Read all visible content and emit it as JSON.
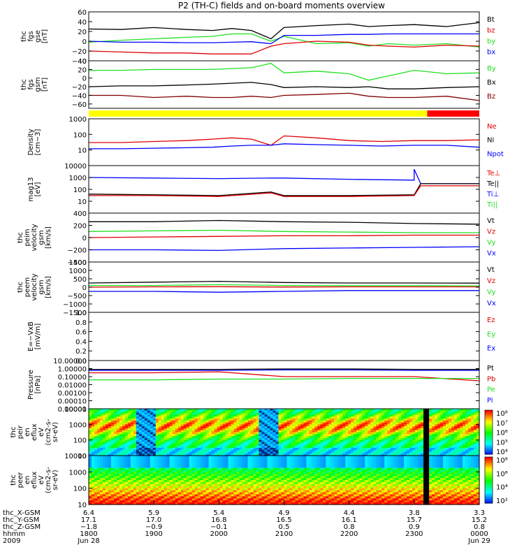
{
  "title": "P2 (TH-C) fields and on-board moments overview",
  "colors": {
    "black": "#000000",
    "red": "#e00000",
    "green": "#20e020",
    "blue": "#0000ff",
    "dark_red": "#800000",
    "yellow": "#ffff00",
    "bar_red": "#ff0000"
  },
  "chart_data": [
    {
      "id": "fgs_gse",
      "type": "line",
      "ylabel": [
        "thc",
        "fgs",
        "gse",
        "[nT]"
      ],
      "ylim": [
        -40,
        60
      ],
      "yticks": [
        "60",
        "40",
        "20",
        "0",
        "−20",
        "−40"
      ],
      "legend": [
        {
          "label": "Bt",
          "color": "#000000"
        },
        {
          "label": "bz",
          "color": "#e00000"
        },
        {
          "label": "by",
          "color": "#20e020"
        },
        {
          "label": "bx",
          "color": "#0000ff"
        }
      ],
      "series": [
        {
          "name": "Bt",
          "color": "#000000",
          "x": [
            0,
            0.5,
            1,
            1.5,
            1.9,
            2.2,
            2.5,
            2.8,
            3,
            3.5,
            4,
            4.3,
            4.6,
            5,
            5.5,
            6
          ],
          "y": [
            25,
            24,
            28,
            24,
            22,
            26,
            22,
            5,
            28,
            32,
            35,
            30,
            32,
            34,
            30,
            38
          ]
        },
        {
          "name": "by",
          "color": "#20e020",
          "x": [
            0,
            0.5,
            1,
            1.5,
            1.9,
            2.2,
            2.5,
            2.8,
            3,
            3.5,
            4,
            4.3,
            4.6,
            5,
            5.5,
            6
          ],
          "y": [
            -2,
            2,
            5,
            8,
            10,
            15,
            15,
            0,
            10,
            -5,
            -3,
            -10,
            -5,
            -8,
            -5,
            -12
          ]
        },
        {
          "name": "bx",
          "color": "#0000ff",
          "x": [
            0,
            0.5,
            1,
            1.5,
            1.9,
            2.2,
            2.5,
            2.8,
            3,
            3.5,
            4,
            4.3,
            4.6,
            5,
            5.5,
            6
          ],
          "y": [
            0,
            -2,
            -2,
            -3,
            -3,
            -2,
            -1,
            -5,
            12,
            12,
            14,
            14,
            15,
            15,
            15,
            15
          ]
        },
        {
          "name": "bz",
          "color": "#e00000",
          "x": [
            0,
            0.5,
            1,
            1.5,
            1.9,
            2.2,
            2.5,
            2.8,
            3,
            3.5,
            4,
            4.3,
            4.6,
            5,
            5.5,
            6
          ],
          "y": [
            -20,
            -22,
            -24,
            -24,
            -26,
            -26,
            -26,
            -10,
            -5,
            0,
            -2,
            -8,
            -10,
            -12,
            -8,
            -10
          ]
        }
      ]
    },
    {
      "id": "fgs_gsm",
      "type": "line",
      "ylabel": [
        "thc",
        "fgs",
        "gsm",
        "[nT]"
      ],
      "ylim": [
        -70,
        40
      ],
      "yticks": [
        "40",
        "20",
        "0",
        "−20",
        "−40",
        "−60"
      ],
      "legend": [
        {
          "label": "By",
          "color": "#20e020"
        },
        {
          "label": "Bx",
          "color": "#000000"
        },
        {
          "label": "Bz",
          "color": "#800000"
        }
      ],
      "series": [
        {
          "name": "By",
          "color": "#20e020",
          "x": [
            0,
            0.5,
            1,
            1.5,
            1.9,
            2.2,
            2.5,
            2.8,
            3,
            3.5,
            4,
            4.3,
            4.6,
            5,
            5.5,
            6
          ],
          "y": [
            18,
            18,
            20,
            20,
            20,
            22,
            24,
            34,
            12,
            16,
            10,
            -5,
            5,
            18,
            10,
            12
          ]
        },
        {
          "name": "Bx",
          "color": "#000000",
          "x": [
            0,
            0.5,
            1,
            1.5,
            1.9,
            2.2,
            2.5,
            2.8,
            3,
            3.5,
            4,
            4.3,
            4.6,
            5,
            5.5,
            6
          ],
          "y": [
            -20,
            -18,
            -18,
            -16,
            -14,
            -12,
            -10,
            -15,
            -22,
            -20,
            -22,
            -20,
            -25,
            -25,
            -22,
            -20
          ]
        },
        {
          "name": "Bz",
          "color": "#800000",
          "x": [
            0,
            0.5,
            1,
            1.5,
            1.9,
            2.2,
            2.5,
            2.8,
            3,
            3.5,
            4,
            4.3,
            4.6,
            5,
            5.5,
            6
          ],
          "y": [
            -40,
            -40,
            -45,
            -42,
            -45,
            -45,
            -42,
            -45,
            -40,
            -38,
            -35,
            -42,
            -45,
            -45,
            -42,
            -52
          ]
        }
      ]
    },
    {
      "id": "density",
      "type": "line",
      "log": true,
      "ylabel": [
        "Density",
        "[cm−3]"
      ],
      "ylim": [
        1,
        1000
      ],
      "yticks": [
        "1000",
        "100",
        "10"
      ],
      "legend": [
        {
          "label": "Ne",
          "color": "#e00000"
        },
        {
          "label": "Ni",
          "color": "#000000"
        },
        {
          "label": "Npot",
          "color": "#0000ff"
        }
      ],
      "series": [
        {
          "name": "Ne",
          "color": "#e00000",
          "x": [
            0,
            0.5,
            1,
            1.5,
            1.9,
            2.2,
            2.5,
            2.8,
            3,
            3.5,
            4,
            4.5,
            5,
            5.5,
            6
          ],
          "y": [
            30,
            30,
            35,
            40,
            50,
            60,
            50,
            20,
            80,
            60,
            40,
            35,
            40,
            40,
            45
          ]
        },
        {
          "name": "Npot",
          "color": "#0000ff",
          "x": [
            0,
            0.5,
            1,
            1.5,
            1.9,
            2.2,
            2.5,
            2.8,
            3,
            3.5,
            4,
            4.5,
            5,
            5.5,
            6
          ],
          "y": [
            12,
            12,
            13,
            14,
            15,
            18,
            20,
            20,
            25,
            22,
            20,
            18,
            20,
            20,
            15
          ]
        }
      ]
    },
    {
      "id": "temperature",
      "type": "line",
      "log": true,
      "ylabel": [
        "mag13",
        "[eV]"
      ],
      "ylim": [
        1,
        10000
      ],
      "yticks": [
        "10000",
        "1000",
        "100",
        "10"
      ],
      "legend": [
        {
          "label": "Te⊥",
          "color": "#e00000"
        },
        {
          "label": "Te||",
          "color": "#000000"
        },
        {
          "label": "Ti⊥",
          "color": "#0000ff"
        },
        {
          "label": "Ti||",
          "color": "#20e020"
        }
      ],
      "series": [
        {
          "name": "Ti⊥",
          "color": "#0000ff",
          "x": [
            0,
            1,
            2,
            2.8,
            3,
            4,
            5,
            5,
            5.1,
            6
          ],
          "y": [
            1000,
            900,
            800,
            900,
            900,
            700,
            600,
            5000,
            300,
            300
          ]
        },
        {
          "name": "Te||",
          "color": "#000000",
          "x": [
            0,
            1,
            2,
            2.8,
            3,
            4,
            5,
            5.1,
            6
          ],
          "y": [
            40,
            35,
            30,
            60,
            30,
            30,
            35,
            300,
            300
          ]
        },
        {
          "name": "Te⊥",
          "color": "#e00000",
          "x": [
            0,
            1,
            2,
            2.8,
            3,
            4,
            5,
            5.1,
            6
          ],
          "y": [
            30,
            30,
            25,
            50,
            25,
            25,
            30,
            200,
            200
          ]
        }
      ]
    },
    {
      "id": "peim_velocity",
      "type": "line",
      "ylabel": [
        "thc",
        "peim",
        "velocity",
        "gsm",
        "[km/s]"
      ],
      "ylim": [
        -400,
        400
      ],
      "yticks": [
        "400",
        "200",
        "0",
        "−200",
        "−400"
      ],
      "legend": [
        {
          "label": "Vt",
          "color": "#000000"
        },
        {
          "label": "Vz",
          "color": "#e00000"
        },
        {
          "label": "Vy",
          "color": "#20e020"
        },
        {
          "label": "Vx",
          "color": "#0000ff"
        }
      ],
      "series": [
        {
          "name": "Vt",
          "color": "#000000",
          "x": [
            0,
            1,
            2,
            3,
            4,
            5,
            6
          ],
          "y": [
            260,
            260,
            280,
            260,
            250,
            230,
            220
          ]
        },
        {
          "name": "Vy",
          "color": "#20e020",
          "x": [
            0,
            1,
            2,
            3,
            4,
            5,
            6
          ],
          "y": [
            100,
            110,
            120,
            100,
            90,
            80,
            80
          ]
        },
        {
          "name": "Vz",
          "color": "#e00000",
          "x": [
            0,
            1,
            2,
            3,
            4,
            5,
            6
          ],
          "y": [
            0,
            10,
            20,
            30,
            30,
            40,
            40
          ]
        },
        {
          "name": "Vx",
          "color": "#0000ff",
          "x": [
            0,
            1,
            2,
            3,
            4,
            5,
            6
          ],
          "y": [
            -200,
            -200,
            -210,
            -180,
            -170,
            -160,
            -150
          ]
        }
      ]
    },
    {
      "id": "peem_velocity",
      "type": "line",
      "ylabel": [
        "thc",
        "peem",
        "velocity",
        "gsm",
        "[km/s]"
      ],
      "ylim": [
        -1500,
        1500
      ],
      "yticks": [
        "1500",
        "1000",
        "500",
        "0",
        "−500",
        "−1000",
        "−1500"
      ],
      "legend": [
        {
          "label": "Vt",
          "color": "#000000"
        },
        {
          "label": "Vz",
          "color": "#e00000"
        },
        {
          "label": "Vy",
          "color": "#20e020"
        },
        {
          "label": "Vx",
          "color": "#0000ff"
        }
      ],
      "series": [
        {
          "name": "Vt",
          "color": "#000000",
          "x": [
            0,
            1,
            2,
            3,
            4,
            5,
            6
          ],
          "y": [
            250,
            300,
            350,
            280,
            250,
            250,
            240
          ]
        },
        {
          "name": "Vy",
          "color": "#20e020",
          "x": [
            0,
            1,
            2,
            3,
            4,
            5,
            6
          ],
          "y": [
            100,
            100,
            150,
            100,
            90,
            90,
            80
          ]
        },
        {
          "name": "Vz",
          "color": "#e00000",
          "x": [
            0,
            1,
            2,
            3,
            4,
            5,
            6
          ],
          "y": [
            0,
            20,
            30,
            10,
            20,
            20,
            20
          ]
        },
        {
          "name": "Vx",
          "color": "#0000ff",
          "x": [
            0,
            1,
            2,
            3,
            4,
            5,
            6
          ],
          "y": [
            -250,
            -250,
            -300,
            -250,
            -200,
            -200,
            -200
          ]
        }
      ]
    },
    {
      "id": "efield",
      "type": "line",
      "ylabel": [
        "E=−VxB",
        "[mV/m]"
      ],
      "ylim": [
        0,
        1
      ],
      "yticks": [
        "1.0",
        "0.8",
        "0.6",
        "0.4",
        "0.2",
        "0.0"
      ],
      "legend": [
        {
          "label": "Ez",
          "color": "#e00000"
        },
        {
          "label": "Ey",
          "color": "#20e020"
        },
        {
          "label": "Ex",
          "color": "#0000ff"
        }
      ],
      "series": []
    },
    {
      "id": "pressure",
      "type": "line",
      "log": true,
      "ylabel": [
        "Pressure",
        "[nPa]"
      ],
      "ylim": [
        1e-05,
        10
      ],
      "yticks": [
        "10.00000",
        "1.00000",
        "0.10000",
        "0.01000",
        "0.00100",
        "0.00010",
        "0.00001"
      ],
      "legend": [
        {
          "label": "Pt",
          "color": "#000000"
        },
        {
          "label": "Pb",
          "color": "#e00000"
        },
        {
          "label": "Pe",
          "color": "#20e020"
        },
        {
          "label": "Pi",
          "color": "#0000ff"
        }
      ],
      "series": [
        {
          "name": "Pi",
          "color": "#0000ff",
          "x": [
            0,
            1,
            2,
            3,
            4,
            5,
            6
          ],
          "y": [
            0.6,
            0.6,
            0.6,
            0.7,
            0.7,
            0.6,
            0.6
          ]
        },
        {
          "name": "Pt",
          "color": "#000000",
          "x": [
            0,
            1,
            2,
            3,
            4,
            5,
            6
          ],
          "y": [
            0.8,
            0.8,
            0.8,
            0.9,
            0.9,
            0.8,
            0.8
          ]
        },
        {
          "name": "Pb",
          "color": "#e00000",
          "x": [
            0,
            1,
            2,
            3,
            4,
            5,
            6
          ],
          "y": [
            0.3,
            0.3,
            0.4,
            0.1,
            0.1,
            0.1,
            0.03
          ]
        },
        {
          "name": "Pe",
          "color": "#20e020",
          "x": [
            0,
            1,
            2,
            3,
            4,
            5,
            6
          ],
          "y": [
            0.04,
            0.04,
            0.05,
            0.05,
            0.06,
            0.06,
            0.06
          ]
        }
      ]
    },
    {
      "id": "peir_spec",
      "type": "heatmap",
      "log": true,
      "ylabel": [
        "thc",
        "peir",
        "en",
        "eflux",
        "eV",
        "(cm2-s-",
        "sr-eV)"
      ],
      "ylim": [
        10,
        10000
      ],
      "yticks": [
        "10000",
        "1000",
        "100",
        "10"
      ],
      "colorbar_ticks": [
        "10⁸",
        "10⁷",
        "10⁶",
        "10⁵",
        "10⁴"
      ]
    },
    {
      "id": "peer_spec",
      "type": "heatmap",
      "log": true,
      "ylabel": [
        "thc",
        "peer",
        "en",
        "eflux",
        "eV",
        "(cm2-s-",
        "sr-eV)"
      ],
      "ylim": [
        10,
        10000
      ],
      "yticks": [
        "10000",
        "1000",
        "100",
        "10"
      ],
      "colorbar_ticks": [
        "10⁸",
        "10⁶",
        "10⁴",
        "10²"
      ]
    }
  ],
  "mode_bar": [
    {
      "from": 0,
      "to": 5.2,
      "color": "#ffff00"
    },
    {
      "from": 5.2,
      "to": 6,
      "color": "#ff0000"
    }
  ],
  "xaxis": {
    "row_labels": [
      "thc_X-GSM",
      "thc_Y-GSM",
      "thc_Z-GSM",
      "hhmm",
      "2009"
    ],
    "columns": [
      [
        "6.4",
        "17.1",
        "−1.8",
        "1800",
        "Jun 28"
      ],
      [
        "5.9",
        "17.0",
        "−0.9",
        "1900",
        ""
      ],
      [
        "5.4",
        "16.8",
        "−0.1",
        "2000",
        ""
      ],
      [
        "4.9",
        "16.5",
        "0.5",
        "2100",
        ""
      ],
      [
        "4.4",
        "16.1",
        "0.8",
        "2200",
        ""
      ],
      [
        "3.8",
        "15.7",
        "0.9",
        "2300",
        ""
      ],
      [
        "3.3",
        "15.2",
        "0.8",
        "0000",
        "Jun 29"
      ]
    ]
  }
}
